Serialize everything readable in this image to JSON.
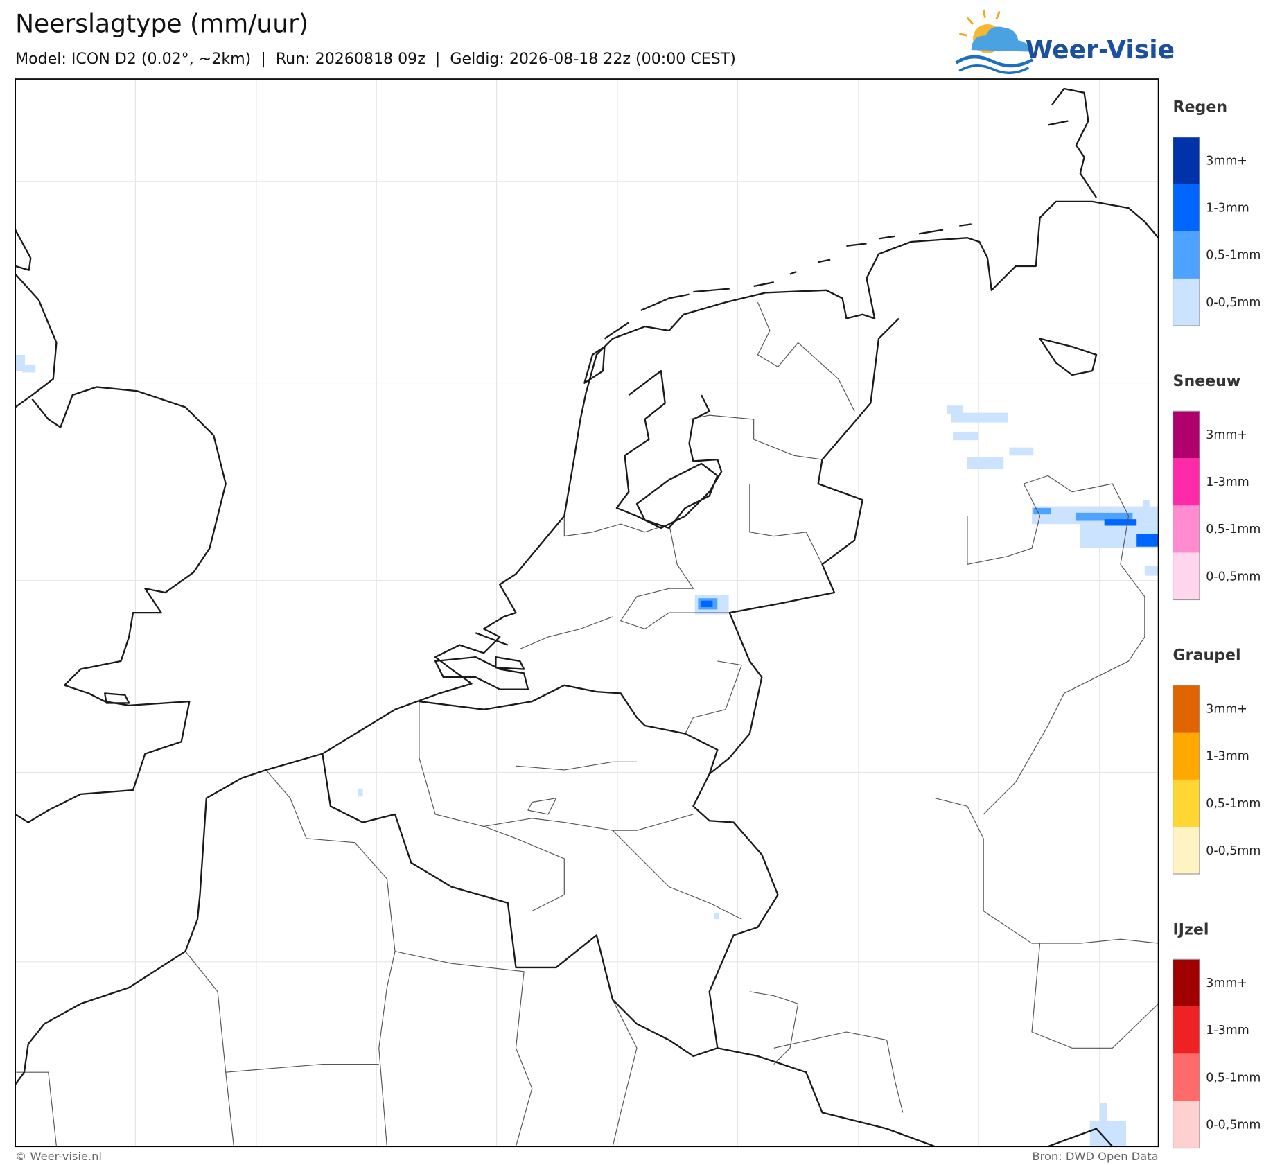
{
  "header": {
    "title": "Neerslagtype (mm/uur)",
    "subtitle": "Model: ICON D2 (0.02°, ~2km)  |  Run: 20260818 09z  |  Geldig: 2026-08-18 22z (00:00 CEST)"
  },
  "logo": {
    "text": "Weer-Visie"
  },
  "legend": [
    {
      "title": "Regen",
      "items": [
        {
          "label": "3mm+",
          "color": "#0033aa"
        },
        {
          "label": "1-3mm",
          "color": "#0066ff"
        },
        {
          "label": "0,5-1mm",
          "color": "#4da3ff"
        },
        {
          "label": "0-0,5mm",
          "color": "#cce3ff"
        }
      ]
    },
    {
      "title": "Sneeuw",
      "items": [
        {
          "label": "3mm+",
          "color": "#b0006e"
        },
        {
          "label": "1-3mm",
          "color": "#ff2aa8"
        },
        {
          "label": "0,5-1mm",
          "color": "#ff8cd0"
        },
        {
          "label": "0-0,5mm",
          "color": "#ffd6ee"
        }
      ]
    },
    {
      "title": "Graupel",
      "items": [
        {
          "label": "3mm+",
          "color": "#e06400"
        },
        {
          "label": "1-3mm",
          "color": "#ffa800"
        },
        {
          "label": "0,5-1mm",
          "color": "#ffd633"
        },
        {
          "label": "0-0,5mm",
          "color": "#fff3c4"
        }
      ]
    },
    {
      "title": "IJzel",
      "items": [
        {
          "label": "3mm+",
          "color": "#a00000"
        },
        {
          "label": "1-3mm",
          "color": "#ee2222"
        },
        {
          "label": "0,5-1mm",
          "color": "#ff6b6b"
        },
        {
          "label": "0-0,5mm",
          "color": "#ffd0d0"
        }
      ]
    }
  ],
  "footer": {
    "left": "© Weer-visie.nl",
    "right": "Bron: DWD Open Data"
  }
}
